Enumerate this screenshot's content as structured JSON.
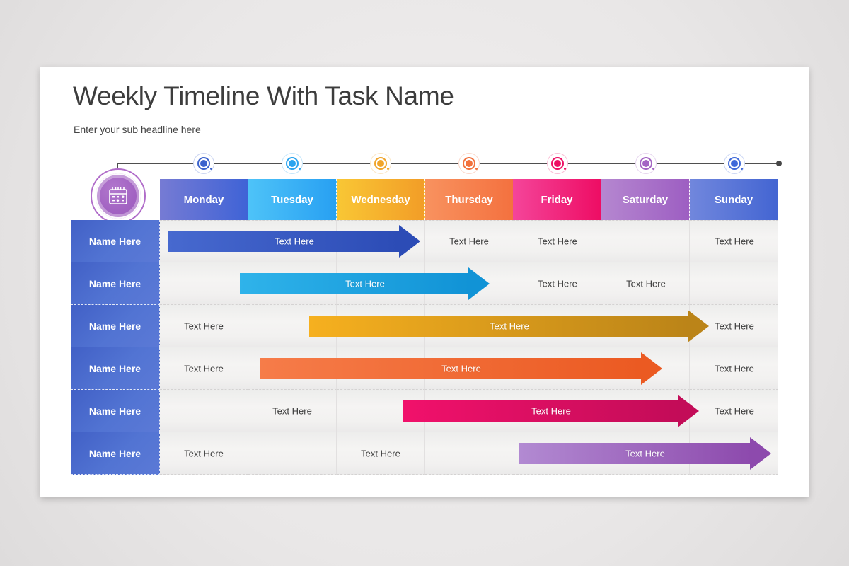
{
  "slide": {
    "title": "Weekly Timeline With Task Name",
    "subtitle": "Enter your sub headline here"
  },
  "labels": {
    "row_name": "Name Here",
    "cell_text": "Text Here"
  },
  "colors": {
    "background": "#e9e7e7",
    "slide": "#ffffff",
    "title_text": "#3d3d3d",
    "subtitle_text": "#454545",
    "timeline_line": "#4f4f4f",
    "timeline_end_dot": "#474747",
    "cell_text": "#3b3b3b",
    "badge_ring": "#b06cc9",
    "badge_fill": "#9c59bd"
  },
  "icons": {
    "badge": "calendar-icon"
  },
  "days": [
    {
      "label": "Monday",
      "grad": [
        "#767bd4",
        "#3f63d6"
      ],
      "dot": "#3c63cd"
    },
    {
      "label": "Tuesday",
      "grad": [
        "#4ec3f8",
        "#28a0f2"
      ],
      "dot": "#2aa4ef"
    },
    {
      "label": "Wednesday",
      "grad": [
        "#f9c735",
        "#f29d27"
      ],
      "dot": "#f0a52b"
    },
    {
      "label": "Thursday",
      "grad": [
        "#f8925f",
        "#f4713f"
      ],
      "dot": "#f2713c"
    },
    {
      "label": "Friday",
      "grad": [
        "#f4459a",
        "#ee0d64"
      ],
      "dot": "#ee0f64"
    },
    {
      "label": "Saturday",
      "grad": [
        "#b587d0",
        "#9d5ec2"
      ],
      "dot": "#a465c4"
    },
    {
      "label": "Sunday",
      "grad": [
        "#7187dd",
        "#4365d2"
      ],
      "dot": "#3e68d9"
    }
  ],
  "rows": [
    {
      "name": "Name Here",
      "arrow": {
        "label": "Text Here",
        "from": 181,
        "to": 537,
        "c1": "#4769cf",
        "c2": "#2c4cb6"
      },
      "text_days": [
        3,
        4,
        6
      ]
    },
    {
      "name": "Name Here",
      "arrow": {
        "label": "Text Here",
        "from": 282,
        "to": 635,
        "c1": "#2fb3ea",
        "c2": "#1193d6"
      },
      "text_days": [
        4,
        5
      ]
    },
    {
      "name": "Name Here",
      "arrow": {
        "label": "Text Here",
        "from": 380,
        "to": 945,
        "c1": "#f6b01f",
        "c2": "#bb8418"
      },
      "text_days": [
        0,
        6
      ]
    },
    {
      "name": "Name Here",
      "arrow": {
        "label": "Text Here",
        "from": 310,
        "to": 879,
        "c1": "#f67c49",
        "c2": "#eb5a22"
      },
      "text_days": [
        0,
        6
      ]
    },
    {
      "name": "Name Here",
      "arrow": {
        "label": "Text Here",
        "from": 512,
        "to": 931,
        "c1": "#f1116b",
        "c2": "#c30c58"
      },
      "text_days": [
        1,
        6
      ]
    },
    {
      "name": "Name Here",
      "arrow": {
        "label": "Text Here",
        "from": 676,
        "to": 1033,
        "c1": "#b28ad2",
        "c2": "#8d4aad"
      },
      "text_days": [
        0,
        2
      ]
    }
  ]
}
